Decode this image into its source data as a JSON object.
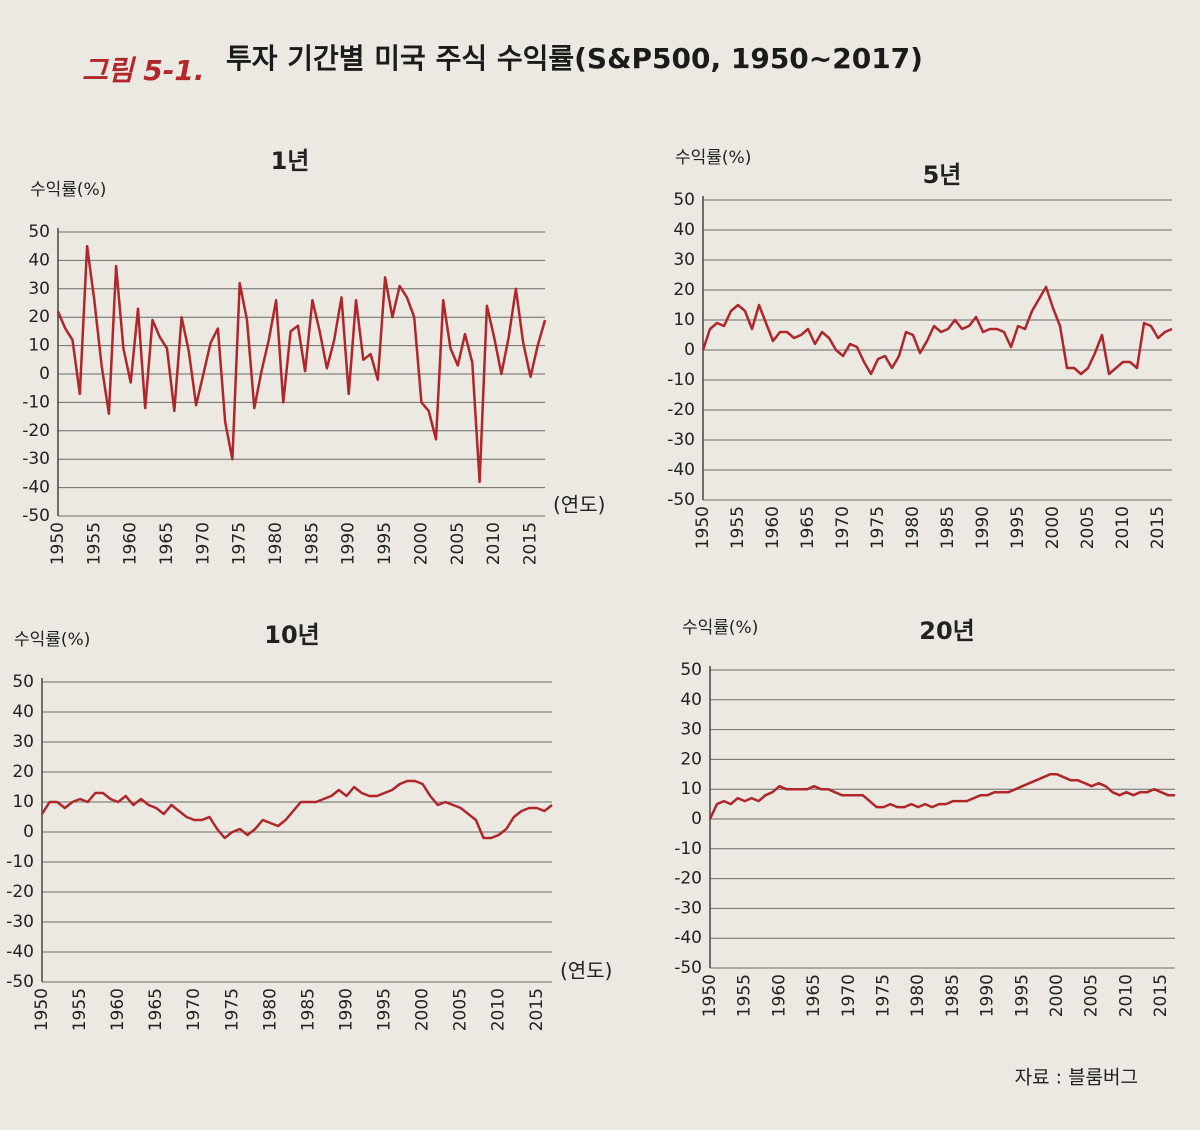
{
  "figure_label": "그림 5-1.",
  "figure_title": "투자 기간별 미국 주식 수익률(S&P500, 1950~2017)",
  "source": "자료 : 블룸버그",
  "chart_data": [
    {
      "type": "line",
      "title": "1년",
      "y_label": "수익률(%)",
      "x_label": "(연도)",
      "color": "#b0262a",
      "grid": true,
      "x": [
        1950,
        1951,
        1952,
        1953,
        1954,
        1955,
        1956,
        1957,
        1958,
        1959,
        1960,
        1961,
        1962,
        1963,
        1964,
        1965,
        1966,
        1967,
        1968,
        1969,
        1970,
        1971,
        1972,
        1973,
        1974,
        1975,
        1976,
        1977,
        1978,
        1979,
        1980,
        1981,
        1982,
        1983,
        1984,
        1985,
        1986,
        1987,
        1988,
        1989,
        1990,
        1991,
        1992,
        1993,
        1994,
        1995,
        1996,
        1997,
        1998,
        1999,
        2000,
        2001,
        2002,
        2003,
        2004,
        2005,
        2006,
        2007,
        2008,
        2009,
        2010,
        2011,
        2012,
        2013,
        2014,
        2015,
        2016,
        2017
      ],
      "values": [
        22,
        16,
        12,
        -7,
        45,
        26,
        3,
        -14,
        38,
        9,
        -3,
        23,
        -12,
        19,
        13,
        9,
        -13,
        20,
        8,
        -11,
        0,
        11,
        16,
        -17,
        -30,
        32,
        19,
        -12,
        1,
        12,
        26,
        -10,
        15,
        17,
        1,
        26,
        15,
        2,
        12,
        27,
        -7,
        26,
        5,
        7,
        -2,
        34,
        20,
        31,
        27,
        20,
        -10,
        -13,
        -23,
        26,
        9,
        3,
        14,
        4,
        -38,
        24,
        13,
        0,
        13,
        30,
        11,
        -1,
        10,
        19
      ],
      "xlim": [
        1950,
        2017
      ],
      "xticks": [
        1950,
        1955,
        1960,
        1965,
        1970,
        1975,
        1980,
        1985,
        1990,
        1995,
        2000,
        2005,
        2010,
        2015
      ],
      "ylim": [
        -50,
        50
      ],
      "yticks": [
        -50,
        -40,
        -30,
        -20,
        -10,
        0,
        10,
        20,
        30,
        40,
        50
      ]
    },
    {
      "type": "line",
      "title": "5년",
      "y_label": "수익률(%)",
      "color": "#b0262a",
      "grid": true,
      "x": [
        1950,
        1951,
        1952,
        1953,
        1954,
        1955,
        1956,
        1957,
        1958,
        1959,
        1960,
        1961,
        1962,
        1963,
        1964,
        1965,
        1966,
        1967,
        1968,
        1969,
        1970,
        1971,
        1972,
        1973,
        1974,
        1975,
        1976,
        1977,
        1978,
        1979,
        1980,
        1981,
        1982,
        1983,
        1984,
        1985,
        1986,
        1987,
        1988,
        1989,
        1990,
        1991,
        1992,
        1993,
        1994,
        1995,
        1996,
        1997,
        1998,
        1999,
        2000,
        2001,
        2002,
        2003,
        2004,
        2005,
        2006,
        2007,
        2008,
        2009,
        2010,
        2011,
        2012,
        2013,
        2014,
        2015,
        2016,
        2017
      ],
      "values": [
        0,
        7,
        9,
        8,
        13,
        15,
        13,
        7,
        15,
        9,
        3,
        6,
        6,
        4,
        5,
        7,
        2,
        6,
        4,
        0,
        -2,
        2,
        1,
        -4,
        -8,
        -3,
        -2,
        -6,
        -2,
        6,
        5,
        -1,
        3,
        8,
        6,
        7,
        10,
        7,
        8,
        11,
        6,
        7,
        7,
        6,
        1,
        8,
        7,
        13,
        17,
        21,
        14,
        8,
        -6,
        -6,
        -8,
        -6,
        -1,
        5,
        -8,
        -6,
        -4,
        -4,
        -6,
        9,
        8,
        4,
        6,
        7
      ],
      "xlim": [
        1950,
        2017
      ],
      "xticks": [
        1950,
        1955,
        1960,
        1965,
        1970,
        1975,
        1980,
        1985,
        1990,
        1995,
        2000,
        2005,
        2010,
        2015
      ],
      "ylim": [
        -50,
        50
      ],
      "yticks": [
        -50,
        -40,
        -30,
        -20,
        -10,
        0,
        10,
        20,
        30,
        40,
        50
      ]
    },
    {
      "type": "line",
      "title": "10년",
      "y_label": "수익률(%)",
      "x_label": "(연도)",
      "color": "#b0262a",
      "grid": true,
      "x": [
        1950,
        1951,
        1952,
        1953,
        1954,
        1955,
        1956,
        1957,
        1958,
        1959,
        1960,
        1961,
        1962,
        1963,
        1964,
        1965,
        1966,
        1967,
        1968,
        1969,
        1970,
        1971,
        1972,
        1973,
        1974,
        1975,
        1976,
        1977,
        1978,
        1979,
        1980,
        1981,
        1982,
        1983,
        1984,
        1985,
        1986,
        1987,
        1988,
        1989,
        1990,
        1991,
        1992,
        1993,
        1994,
        1995,
        1996,
        1997,
        1998,
        1999,
        2000,
        2001,
        2002,
        2003,
        2004,
        2005,
        2006,
        2007,
        2008,
        2009,
        2010,
        2011,
        2012,
        2013,
        2014,
        2015,
        2016,
        2017
      ],
      "values": [
        6,
        10,
        10,
        8,
        10,
        11,
        10,
        13,
        13,
        11,
        10,
        12,
        9,
        11,
        9,
        8,
        6,
        9,
        7,
        5,
        4,
        4,
        5,
        1,
        -2,
        0,
        1,
        -1,
        1,
        4,
        3,
        2,
        4,
        7,
        10,
        10,
        10,
        11,
        12,
        14,
        12,
        15,
        13,
        12,
        12,
        13,
        14,
        16,
        17,
        17,
        16,
        12,
        9,
        10,
        9,
        8,
        6,
        4,
        -2,
        -2,
        -1,
        1,
        5,
        7,
        8,
        8,
        7,
        9
      ],
      "xlim": [
        1950,
        2017
      ],
      "xticks": [
        1950,
        1955,
        1960,
        1965,
        1970,
        1975,
        1980,
        1985,
        1990,
        1995,
        2000,
        2005,
        2010,
        2015
      ],
      "ylim": [
        -50,
        50
      ],
      "yticks": [
        -50,
        -40,
        -30,
        -20,
        -10,
        0,
        10,
        20,
        30,
        40,
        50
      ]
    },
    {
      "type": "line",
      "title": "20년",
      "y_label": "수익률(%)",
      "color": "#b0262a",
      "grid": true,
      "x": [
        1950,
        1951,
        1952,
        1953,
        1954,
        1955,
        1956,
        1957,
        1958,
        1959,
        1960,
        1961,
        1962,
        1963,
        1964,
        1965,
        1966,
        1967,
        1968,
        1969,
        1970,
        1971,
        1972,
        1973,
        1974,
        1975,
        1976,
        1977,
        1978,
        1979,
        1980,
        1981,
        1982,
        1983,
        1984,
        1985,
        1986,
        1987,
        1988,
        1989,
        1990,
        1991,
        1992,
        1993,
        1994,
        1995,
        1996,
        1997,
        1998,
        1999,
        2000,
        2001,
        2002,
        2003,
        2004,
        2005,
        2006,
        2007,
        2008,
        2009,
        2010,
        2011,
        2012,
        2013,
        2014,
        2015,
        2016,
        2017
      ],
      "values": [
        0,
        5,
        6,
        5,
        7,
        6,
        7,
        6,
        8,
        9,
        11,
        10,
        10,
        10,
        10,
        11,
        10,
        10,
        9,
        8,
        8,
        8,
        8,
        6,
        4,
        4,
        5,
        4,
        4,
        5,
        4,
        5,
        4,
        5,
        5,
        6,
        6,
        6,
        7,
        8,
        8,
        9,
        9,
        9,
        10,
        11,
        12,
        13,
        14,
        15,
        15,
        14,
        13,
        13,
        12,
        11,
        12,
        11,
        9,
        8,
        9,
        8,
        9,
        9,
        10,
        9,
        8,
        8
      ],
      "xlim": [
        1950,
        2017
      ],
      "xticks": [
        1950,
        1955,
        1960,
        1965,
        1970,
        1975,
        1980,
        1985,
        1990,
        1995,
        2000,
        2005,
        2010,
        2015
      ],
      "ylim": [
        -50,
        50
      ],
      "yticks": [
        -50,
        -40,
        -30,
        -20,
        -10,
        0,
        10,
        20,
        30,
        40,
        50
      ]
    }
  ]
}
